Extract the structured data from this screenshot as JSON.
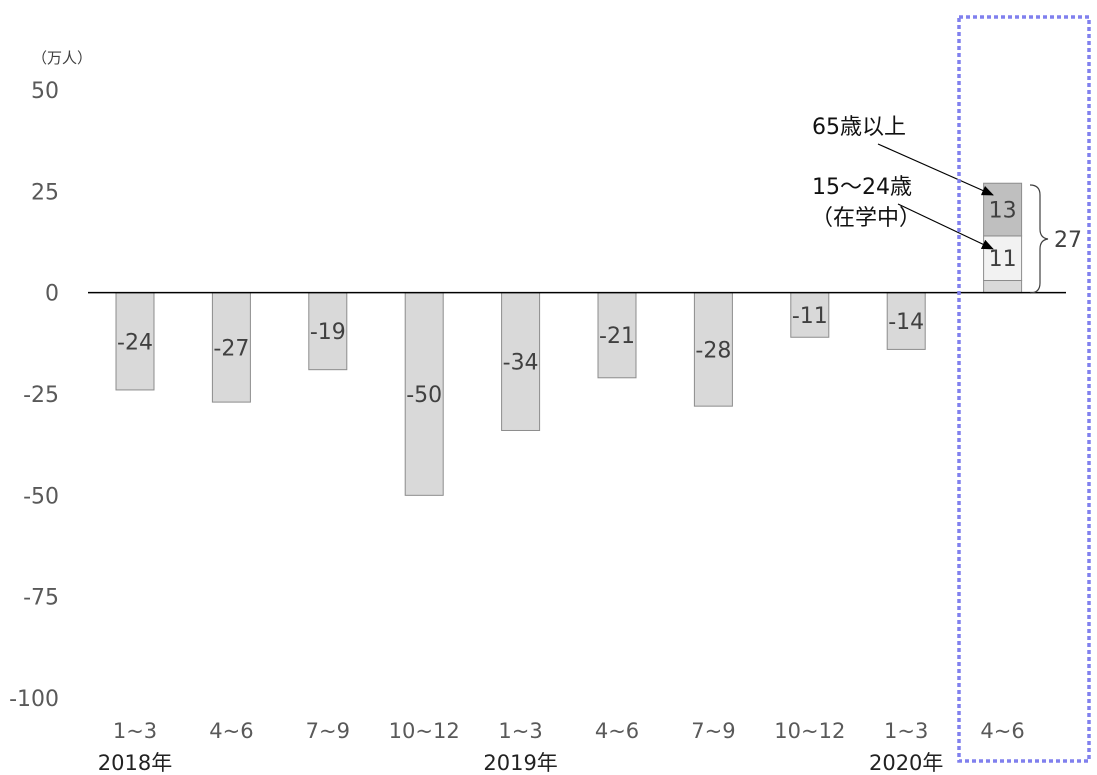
{
  "chart_data": {
    "type": "bar",
    "unit_label": "（万人）",
    "ylim": [
      -100,
      50
    ],
    "yticks": [
      "50",
      "25",
      "0",
      "-25",
      "-50",
      "-75",
      "-100"
    ],
    "categories": [
      "1~3",
      "4~6",
      "7~9",
      "10~12",
      "1~3",
      "4~6",
      "7~9",
      "10~12",
      "1~3",
      "4~6"
    ],
    "years": [
      {
        "label": "2018年",
        "index": 0
      },
      {
        "label": "2019年",
        "index": 4
      },
      {
        "label": "2020年",
        "index": 8
      }
    ],
    "values": [
      -24,
      -27,
      -19,
      -50,
      -34,
      -21,
      -28,
      -11,
      -14,
      null
    ],
    "stacked_last": {
      "index": 9,
      "segments": [
        {
          "value": 3,
          "label": "",
          "color": "#d9d9d9"
        },
        {
          "value": 11,
          "label": "11",
          "color": "#f2f2f2"
        },
        {
          "value": 13,
          "label": "13",
          "color": "#bfbfbf"
        }
      ],
      "total_label": "27"
    },
    "annotations": [
      {
        "text": "65歳以上"
      },
      {
        "text": "15〜24歳"
      },
      {
        "text": "（在学中）"
      }
    ],
    "bar_color": "#d9d9d9",
    "bar_edge_color": "#8c8c8c",
    "highlight_color": "#8080ee"
  }
}
